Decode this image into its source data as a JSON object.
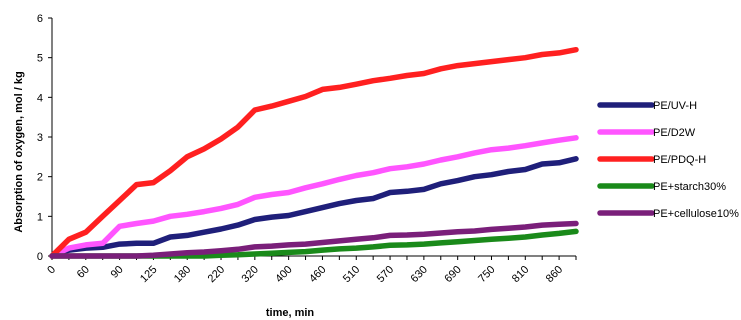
{
  "chart_data": {
    "type": "line",
    "xlabel": "time, min",
    "ylabel": "Absorption of oxygen, mol / kg",
    "ylim": [
      0,
      6
    ],
    "yticks": [
      "0",
      "1",
      "2",
      "3",
      "4",
      "5",
      "6"
    ],
    "xtick_labels": [
      "0",
      "60",
      "90",
      "125",
      "180",
      "220",
      "320",
      "400",
      "460",
      "510",
      "570",
      "630",
      "690",
      "750",
      "810",
      "860"
    ],
    "grid": false,
    "legend_position": "right",
    "series": [
      {
        "name": "PE/UV-H",
        "color": "#1f1f7a",
        "values": [
          0,
          0.15,
          0.2,
          0.22,
          0.3,
          0.32,
          0.32,
          0.48,
          0.52,
          0.6,
          0.68,
          0.78,
          0.92,
          0.98,
          1.02,
          1.12,
          1.22,
          1.32,
          1.4,
          1.45,
          1.6,
          1.63,
          1.68,
          1.82,
          1.9,
          2.0,
          2.05,
          2.13,
          2.18,
          2.32,
          2.35,
          2.45
        ]
      },
      {
        "name": "PE/D2W",
        "color": "#ff55ff",
        "values": [
          0,
          0.2,
          0.28,
          0.32,
          0.75,
          0.82,
          0.88,
          1.0,
          1.05,
          1.12,
          1.2,
          1.3,
          1.48,
          1.55,
          1.6,
          1.72,
          1.82,
          1.93,
          2.03,
          2.1,
          2.2,
          2.25,
          2.32,
          2.42,
          2.5,
          2.6,
          2.68,
          2.72,
          2.78,
          2.85,
          2.92,
          2.98
        ]
      },
      {
        "name": "PE/PDQ-H",
        "color": "#ff2020",
        "values": [
          0,
          0.42,
          0.6,
          1.0,
          1.4,
          1.8,
          1.85,
          2.15,
          2.5,
          2.7,
          2.95,
          3.25,
          3.68,
          3.78,
          3.9,
          4.02,
          4.2,
          4.25,
          4.33,
          4.42,
          4.48,
          4.55,
          4.6,
          4.72,
          4.8,
          4.85,
          4.9,
          4.95,
          5.0,
          5.08,
          5.12,
          5.2
        ]
      },
      {
        "name": "PE+starch30%",
        "color": "#1a8a1a",
        "values": [
          0,
          0.0,
          0.0,
          0.0,
          0.0,
          0.0,
          0.0,
          0.0,
          0.0,
          0.0,
          0.02,
          0.03,
          0.05,
          0.07,
          0.09,
          0.11,
          0.15,
          0.18,
          0.2,
          0.23,
          0.27,
          0.28,
          0.3,
          0.33,
          0.36,
          0.39,
          0.42,
          0.45,
          0.48,
          0.53,
          0.57,
          0.62
        ]
      },
      {
        "name": "PE+cellulose10%",
        "color": "#7a1f7a",
        "values": [
          0,
          0.0,
          0.0,
          0.0,
          0.0,
          0.0,
          0.02,
          0.05,
          0.08,
          0.1,
          0.13,
          0.17,
          0.23,
          0.25,
          0.28,
          0.3,
          0.34,
          0.38,
          0.42,
          0.46,
          0.52,
          0.53,
          0.55,
          0.58,
          0.61,
          0.63,
          0.67,
          0.7,
          0.73,
          0.78,
          0.8,
          0.82
        ]
      }
    ]
  }
}
